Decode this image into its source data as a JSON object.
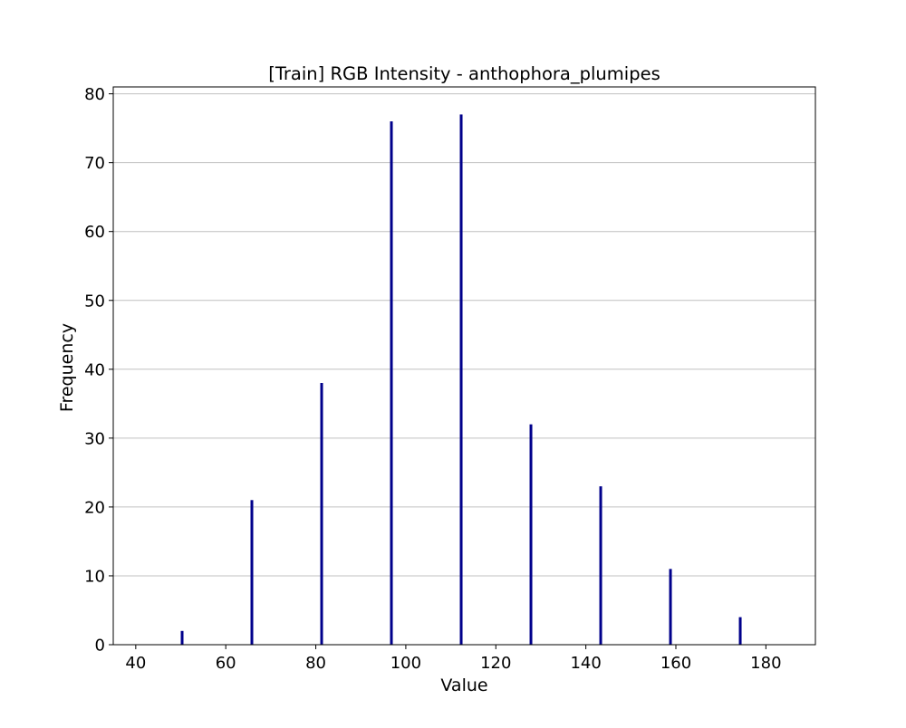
{
  "chart_data": {
    "type": "bar",
    "title": "[Train] RGB Intensity - anthophora_plumipes",
    "xlabel": "Value",
    "ylabel": "Frequency",
    "xlim": [
      35,
      191
    ],
    "ylim": [
      0,
      81
    ],
    "xticks": [
      40,
      60,
      80,
      100,
      120,
      140,
      160,
      180
    ],
    "yticks": [
      0,
      10,
      20,
      30,
      40,
      50,
      60,
      70,
      80
    ],
    "grid": "y",
    "bar_color": "#00008b",
    "series": [
      {
        "x": [
          50.3,
          65.8,
          81.3,
          96.8,
          112.3,
          127.8,
          143.3,
          158.8,
          174.3
        ],
        "values": [
          2,
          21,
          38,
          76,
          77,
          32,
          23,
          11,
          4
        ]
      }
    ]
  }
}
